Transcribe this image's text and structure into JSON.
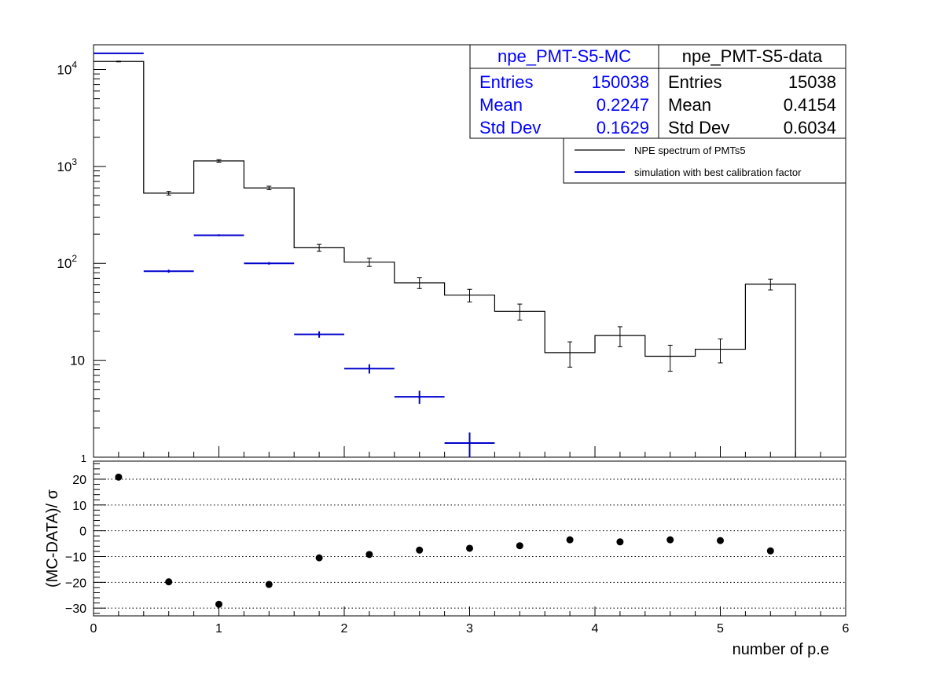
{
  "chart_data": [
    {
      "type": "bar",
      "subtype": "histogram-step",
      "panel": "upper",
      "xlim": [
        0,
        6
      ],
      "ylim": [
        1,
        18000
      ],
      "yscale": "log",
      "bin_width": 0.4,
      "ytick_labels": [
        "1",
        "10",
        "10^2",
        "10^3",
        "10^4"
      ],
      "legend": {
        "position": "top-right",
        "entries": [
          "NPE spectrum of PMTs5",
          "simulation with best calibration factor"
        ]
      },
      "stats": [
        {
          "title": "npe_PMT-S5-MC",
          "rows": [
            {
              "label": "Entries",
              "value": "150038"
            },
            {
              "label": "Mean",
              "value": "0.2247"
            },
            {
              "label": "Std Dev",
              "value": "0.1629"
            }
          ],
          "color": "#0000ff"
        },
        {
          "title": "npe_PMT-S5-data",
          "rows": [
            {
              "label": "Entries",
              "value": "15038"
            },
            {
              "label": "Mean",
              "value": "0.4154"
            },
            {
              "label": "Std Dev",
              "value": "0.6034"
            }
          ],
          "color": "#000000"
        }
      ],
      "series": [
        {
          "name": "NPE spectrum of PMTs5",
          "color": "#000000",
          "style": "step-with-errors",
          "x": [
            0.2,
            0.6,
            1.0,
            1.4,
            1.8,
            2.2,
            2.6,
            3.0,
            3.4,
            3.8,
            4.2,
            4.6,
            5.0,
            5.4
          ],
          "values": [
            12100,
            530,
            1140,
            600,
            145,
            103,
            63,
            47,
            32,
            12,
            18,
            11,
            13,
            61
          ],
          "errors": [
            110,
            23,
            34,
            25,
            12,
            10,
            8,
            7,
            6,
            3.5,
            4.2,
            3.3,
            3.6,
            7.8
          ]
        },
        {
          "name": "simulation with best calibration factor",
          "color": "#0000cc",
          "style": "markers-with-xerrors",
          "x": [
            0.2,
            0.6,
            1.0,
            1.4,
            1.8,
            2.2,
            2.6,
            3.0
          ],
          "values": [
            14700,
            83,
            195,
            100,
            18.5,
            8.2,
            4.2,
            1.4
          ],
          "errors": [
            40,
            3,
            4.5,
            3,
            1.4,
            0.9,
            0.65,
            0.4
          ]
        }
      ]
    },
    {
      "type": "scatter",
      "panel": "lower",
      "xlabel": "number of p.e",
      "ylabel": "(MC-DATA)/ σ",
      "xlim": [
        0,
        6
      ],
      "ylim": [
        -33,
        27
      ],
      "xticks": [
        0,
        1,
        2,
        3,
        4,
        5,
        6
      ],
      "yticks": [
        -30,
        -20,
        -10,
        0,
        10,
        20
      ],
      "grid": "horizontal-dotted",
      "x": [
        0.2,
        0.6,
        1.0,
        1.4,
        1.8,
        2.2,
        2.6,
        3.0,
        3.4,
        3.8,
        4.2,
        4.6,
        5.0,
        5.4
      ],
      "values": [
        20.8,
        -19.8,
        -28.5,
        -20.8,
        -10.5,
        -9.2,
        -7.5,
        -6.8,
        -5.8,
        -3.5,
        -4.3,
        -3.5,
        -3.8,
        -7.8
      ],
      "color": "#000000"
    }
  ]
}
